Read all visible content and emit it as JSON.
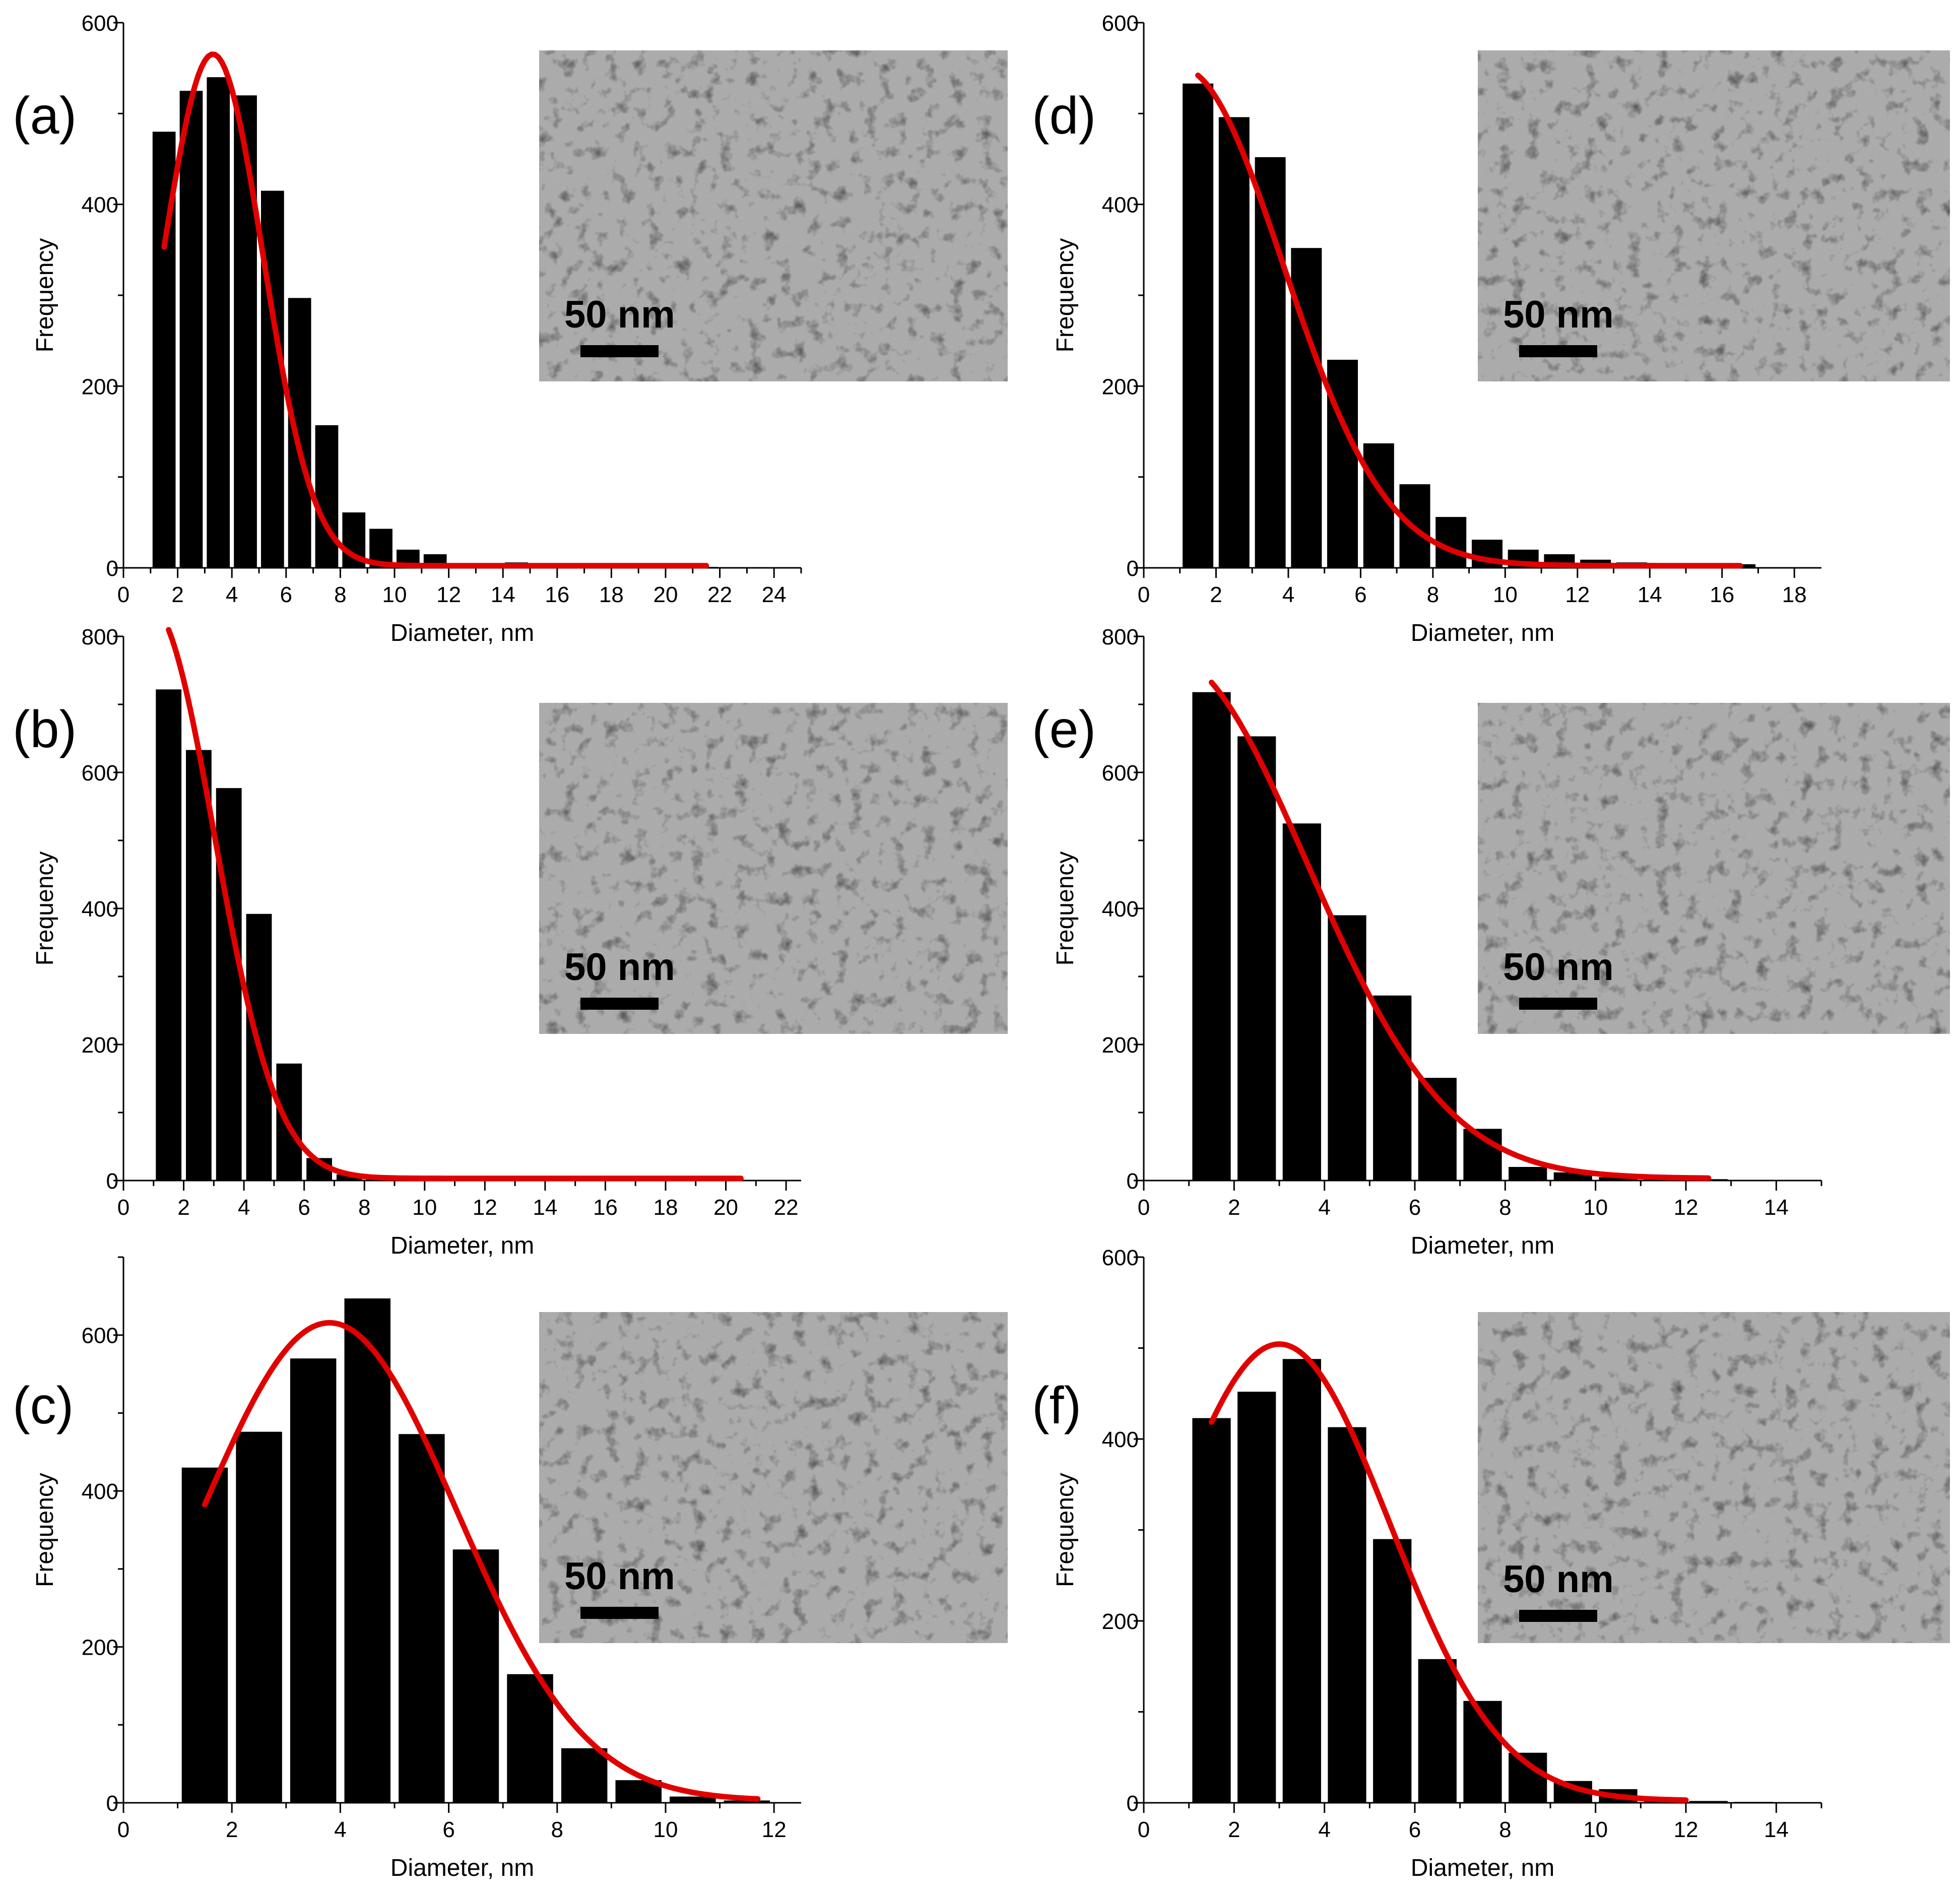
{
  "figure": {
    "scale_label": "50 nm",
    "colors": {
      "bars": "#000000",
      "fit": "#e00000",
      "tem_background": "#a9a9a9"
    }
  },
  "chart_data": [
    {
      "panel": "(a)",
      "type": "bar",
      "xlabel": "Diameter, nm",
      "ylabel": "Frequency",
      "xlim": [
        0,
        25
      ],
      "ylim": [
        0,
        600
      ],
      "xticks": [
        0,
        2,
        4,
        6,
        8,
        10,
        12,
        14,
        16,
        18,
        20,
        22,
        24
      ],
      "yticks": [
        0,
        200,
        400,
        600
      ],
      "bar_width": 0.85,
      "x": [
        1.5,
        2.5,
        3.5,
        4.5,
        5.5,
        6.5,
        7.5,
        8.5,
        9.5,
        10.5,
        11.5,
        12.5,
        13.5,
        14.5,
        15.5,
        16.5,
        17.5,
        18.5,
        19.5,
        20.5,
        21.5
      ],
      "values": [
        480,
        525,
        540,
        520,
        415,
        297,
        157,
        61,
        43,
        20,
        15,
        5,
        4,
        6,
        2,
        1,
        1,
        1,
        1,
        1,
        1
      ],
      "fit": {
        "peak": 563,
        "center": 3.3,
        "sigma": 1.85,
        "x_range": [
          1.5,
          21.5
        ]
      },
      "inset_label": "50 nm"
    },
    {
      "panel": "(b)",
      "type": "bar",
      "xlabel": "Diameter, nm",
      "ylabel": "Frequency",
      "xlim": [
        0,
        22.5
      ],
      "ylim": [
        0,
        800
      ],
      "xticks": [
        0,
        2,
        4,
        6,
        8,
        10,
        12,
        14,
        16,
        18,
        20,
        22
      ],
      "yticks": [
        0,
        200,
        400,
        600,
        800
      ],
      "bar_width": 0.85,
      "x": [
        1.5,
        2.5,
        3.5,
        4.5,
        5.5,
        6.5,
        7.5,
        8.5,
        9.5,
        10.5
      ],
      "values": [
        722,
        633,
        577,
        392,
        172,
        33,
        9,
        6,
        2,
        1
      ],
      "fit": {
        "peak": 840,
        "center": 0.9,
        "sigma": 2.1,
        "x_range": [
          1.5,
          20.5
        ]
      },
      "inset_label": "50 nm"
    },
    {
      "panel": "(c)",
      "type": "bar",
      "xlabel": "Diameter, nm",
      "ylabel": "Frequency",
      "xlim": [
        0,
        12.5
      ],
      "ylim": [
        0,
        700
      ],
      "xticks": [
        0,
        2,
        4,
        6,
        8,
        10,
        12
      ],
      "yticks": [
        0,
        200,
        400,
        600
      ],
      "bar_width": 0.85,
      "x": [
        1.5,
        2.5,
        3.5,
        4.5,
        5.5,
        6.5,
        7.5,
        8.5,
        9.5,
        10.5,
        11.5
      ],
      "values": [
        430,
        476,
        570,
        647,
        473,
        325,
        165,
        70,
        29,
        8,
        3
      ],
      "fit": {
        "peak": 613,
        "center": 3.8,
        "sigma": 2.35,
        "x_range": [
          1.5,
          11.7
        ]
      },
      "inset_label": "50 nm"
    },
    {
      "panel": "(d)",
      "type": "bar",
      "xlabel": "Diameter, nm",
      "ylabel": "Frequency",
      "xlim": [
        0,
        18.75
      ],
      "ylim": [
        0,
        600
      ],
      "xticks": [
        0,
        2,
        4,
        6,
        8,
        10,
        12,
        14,
        16,
        18
      ],
      "yticks": [
        0,
        200,
        400,
        600
      ],
      "bar_width": 0.85,
      "x": [
        1.5,
        2.5,
        3.5,
        4.5,
        5.5,
        6.5,
        7.5,
        8.5,
        9.5,
        10.5,
        11.5,
        12.5,
        13.5,
        14.5,
        15.5,
        16.5
      ],
      "values": [
        533,
        496,
        452,
        352,
        229,
        137,
        92,
        56,
        31,
        20,
        15,
        9,
        6,
        5,
        4,
        4
      ],
      "fit": {
        "peak": 548,
        "center": 1.0,
        "sigma": 2.85,
        "x_range": [
          1.5,
          16.5
        ]
      },
      "inset_label": "50 nm"
    },
    {
      "panel": "(e)",
      "type": "bar",
      "xlabel": "Diameter, nm",
      "ylabel": "Frequency",
      "xlim": [
        0,
        15
      ],
      "ylim": [
        0,
        800
      ],
      "xticks": [
        0,
        2,
        4,
        6,
        8,
        10,
        12,
        14
      ],
      "yticks": [
        0,
        200,
        400,
        600,
        800
      ],
      "bar_width": 0.85,
      "x": [
        1.5,
        2.5,
        3.5,
        4.5,
        5.5,
        6.5,
        7.5,
        8.5,
        9.5,
        10.5,
        11.5,
        12.5
      ],
      "values": [
        718,
        653,
        525,
        390,
        272,
        151,
        76,
        20,
        12,
        5,
        3,
        2
      ],
      "fit": {
        "peak": 768,
        "center": 0.5,
        "sigma": 3.1,
        "x_range": [
          1.5,
          12.5
        ]
      },
      "inset_label": "50 nm"
    },
    {
      "panel": "(f)",
      "type": "bar",
      "xlabel": "Diameter, nm",
      "ylabel": "Frequency",
      "xlim": [
        0,
        15
      ],
      "ylim": [
        0,
        600
      ],
      "xticks": [
        0,
        2,
        4,
        6,
        8,
        10,
        12,
        14
      ],
      "yticks": [
        0,
        200,
        400,
        600
      ],
      "bar_width": 0.85,
      "x": [
        1.5,
        2.5,
        3.5,
        4.5,
        5.5,
        6.5,
        7.5,
        8.5,
        9.5,
        10.5,
        11.5,
        12.5,
        13.5
      ],
      "values": [
        423,
        452,
        488,
        413,
        290,
        158,
        112,
        55,
        24,
        15,
        6,
        2,
        1
      ],
      "fit": {
        "peak": 502,
        "center": 3.0,
        "sigma": 2.45,
        "x_range": [
          1.5,
          12
        ]
      },
      "inset_label": "50 nm"
    }
  ]
}
